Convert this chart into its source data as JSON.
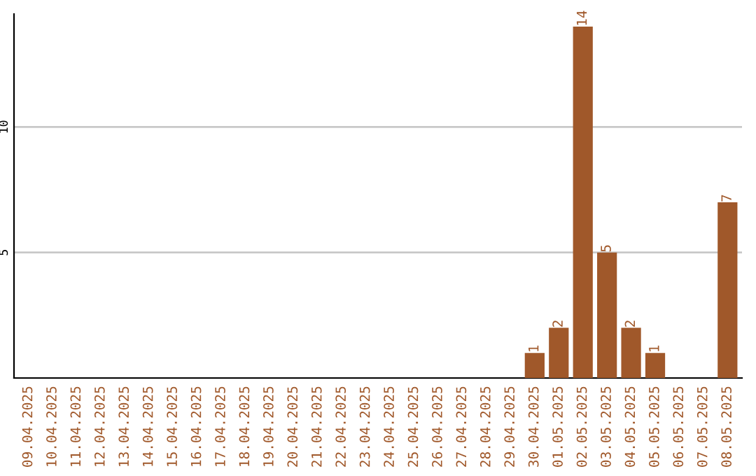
{
  "chart_data": {
    "type": "bar",
    "categories": [
      "09.04.2025",
      "10.04.2025",
      "11.04.2025",
      "12.04.2025",
      "13.04.2025",
      "14.04.2025",
      "15.04.2025",
      "16.04.2025",
      "17.04.2025",
      "18.04.2025",
      "19.04.2025",
      "20.04.2025",
      "21.04.2025",
      "22.04.2025",
      "23.04.2025",
      "24.04.2025",
      "25.04.2025",
      "26.04.2025",
      "27.04.2025",
      "28.04.2025",
      "29.04.2025",
      "30.04.2025",
      "01.05.2025",
      "02.05.2025",
      "03.05.2025",
      "04.05.2025",
      "05.05.2025",
      "06.05.2025",
      "07.05.2025",
      "08.05.2025"
    ],
    "values": [
      0,
      0,
      0,
      0,
      0,
      0,
      0,
      0,
      0,
      0,
      0,
      0,
      0,
      0,
      0,
      0,
      0,
      0,
      0,
      0,
      0,
      1,
      2,
      14,
      5,
      2,
      1,
      0,
      0,
      7
    ],
    "value_labels": [
      null,
      null,
      null,
      null,
      null,
      null,
      null,
      null,
      null,
      null,
      null,
      null,
      null,
      null,
      null,
      null,
      null,
      null,
      null,
      null,
      null,
      "1",
      "2",
      "14",
      "5",
      "2",
      "1",
      null,
      null,
      "7"
    ],
    "color": "#a0582a",
    "ylim": [
      0,
      14.5
    ],
    "yticks": [
      5,
      10
    ],
    "grid": "y"
  }
}
